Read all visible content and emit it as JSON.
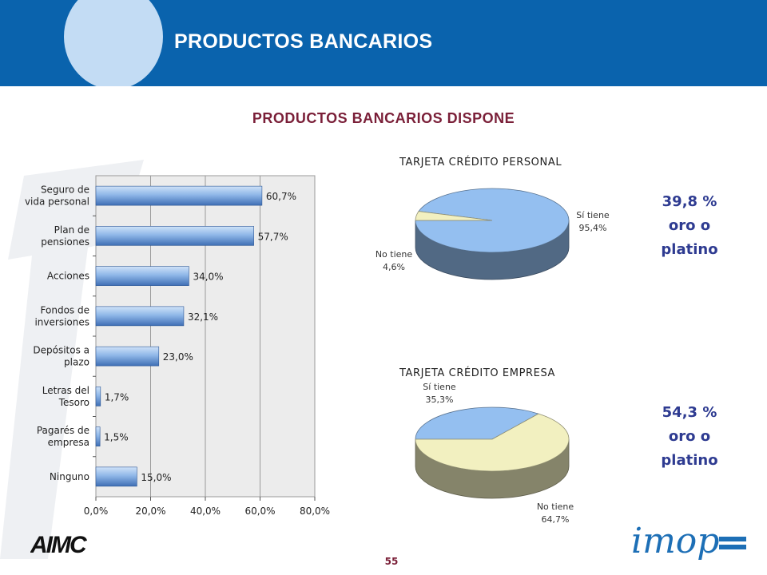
{
  "header": {
    "title": "PRODUCTOS BANCARIOS"
  },
  "section_title": "PRODUCTOS BANCARIOS DISPONE",
  "page_number": "55",
  "logos": {
    "left": "AIMC",
    "right": "imop"
  },
  "colors": {
    "header_blue": "#0a63ad",
    "header_circle": "#c3dcf4",
    "title_maroon": "#7a1f38",
    "highlight_navy": "#2e3b91",
    "bar_blue": "#8fb7e8",
    "pie_blue": "#94bff0",
    "pie_cream": "#f2f0c0"
  },
  "chart_data": [
    {
      "type": "bar",
      "orientation": "horizontal",
      "categories": [
        "Seguro de\nvida personal",
        "Plan de\npensiones",
        "Acciones",
        "Fondos de\ninversiones",
        "Depósitos a\nplazo",
        "Letras del\nTesoro",
        "Pagarés de\nempresa",
        "Ninguno"
      ],
      "values": [
        60.7,
        57.7,
        34.0,
        32.1,
        23.0,
        1.7,
        1.5,
        15.0
      ],
      "data_labels": [
        "60,7%",
        "57,7%",
        "34,0%",
        "32,1%",
        "23,0%",
        "1,7%",
        "1,5%",
        "15,0%"
      ],
      "x_ticks": [
        "0,0%",
        "20,0%",
        "40,0%",
        "60,0%",
        "80,0%"
      ],
      "xlim": [
        0,
        80
      ],
      "grid": true
    },
    {
      "type": "pie",
      "title": "TARJETA CRÉDITO PERSONAL",
      "slices": [
        {
          "label": "Sí tiene",
          "value": 95.4,
          "value_label": "95,4%",
          "color": "#94bff0"
        },
        {
          "label": "No tiene",
          "value": 4.6,
          "value_label": "4,6%",
          "color": "#f2f0c0"
        }
      ],
      "highlight": {
        "value": "39,8 %",
        "line2": "oro o",
        "line3": "platino"
      }
    },
    {
      "type": "pie",
      "title": "TARJETA CRÉDITO EMPRESA",
      "slices": [
        {
          "label": "Sí tiene",
          "value": 35.3,
          "value_label": "35,3%",
          "color": "#94bff0"
        },
        {
          "label": "No tiene",
          "value": 64.7,
          "value_label": "64,7%",
          "color": "#f2f0c0"
        }
      ],
      "highlight": {
        "value": "54,3 %",
        "line2": "oro o",
        "line3": "platino"
      }
    }
  ]
}
